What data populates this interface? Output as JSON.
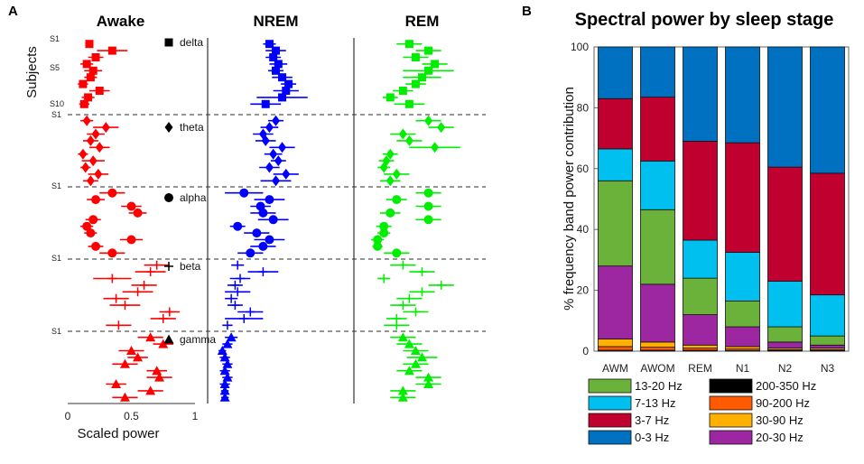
{
  "chart_data": [
    {
      "panel": "A",
      "type": "scatter",
      "xlabel": "Scaled power",
      "ylabel": "Subjects",
      "xlim": [
        0,
        1
      ],
      "xticks": [
        "0",
        "0.5",
        "1"
      ],
      "subject_labels": [
        "S1",
        "S5",
        "S10"
      ],
      "band_marker_labels": [
        "S1",
        "S1",
        "S1",
        "S1"
      ],
      "bands": [
        {
          "name": "delta",
          "marker": "square"
        },
        {
          "name": "theta",
          "marker": "diamond"
        },
        {
          "name": "alpha",
          "marker": "circle"
        },
        {
          "name": "beta",
          "marker": "plus"
        },
        {
          "name": "gamma",
          "marker": "triangle"
        }
      ],
      "stages": [
        {
          "name": "Awake",
          "color": "#ff0000",
          "series": {
            "delta": [
              [
                0.17,
                0.03
              ],
              [
                0.35,
                0.12
              ],
              [
                0.22,
                0.06
              ],
              [
                0.15,
                0.05
              ],
              [
                0.2,
                0.07
              ],
              [
                0.18,
                0.05
              ],
              [
                0.12,
                0.04
              ],
              [
                0.25,
                0.08
              ],
              [
                0.16,
                0.05
              ],
              [
                0.13,
                0.04
              ]
            ],
            "theta": [
              [
                0.15,
                0.05
              ],
              [
                0.3,
                0.1
              ],
              [
                0.22,
                0.07
              ],
              [
                0.18,
                0.06
              ],
              [
                0.25,
                0.08
              ],
              [
                0.12,
                0.04
              ],
              [
                0.2,
                0.09
              ],
              [
                0.14,
                0.04
              ],
              [
                0.24,
                0.08
              ],
              [
                0.18,
                0.06
              ]
            ],
            "alpha": [
              [
                0.35,
                0.1
              ],
              [
                0.22,
                0.07
              ],
              [
                0.5,
                0.08
              ],
              [
                0.55,
                0.07
              ],
              [
                0.2,
                0.06
              ],
              [
                0.15,
                0.05
              ],
              [
                0.18,
                0.05
              ],
              [
                0.5,
                0.09
              ],
              [
                0.22,
                0.06
              ],
              [
                0.35,
                0.1
              ]
            ],
            "beta": [
              [
                0.7,
                0.1
              ],
              [
                0.65,
                0.12
              ],
              [
                0.35,
                0.15
              ],
              [
                0.6,
                0.1
              ],
              [
                0.55,
                0.12
              ],
              [
                0.38,
                0.1
              ],
              [
                0.45,
                0.12
              ],
              [
                0.8,
                0.08
              ],
              [
                0.75,
                0.1
              ],
              [
                0.4,
                0.1
              ]
            ],
            "gamma": [
              [
                0.65,
                0.1
              ],
              [
                0.75,
                0.08
              ],
              [
                0.5,
                0.1
              ],
              [
                0.55,
                0.08
              ],
              [
                0.45,
                0.1
              ],
              [
                0.7,
                0.08
              ],
              [
                0.72,
                0.1
              ],
              [
                0.38,
                0.08
              ],
              [
                0.65,
                0.1
              ],
              [
                0.45,
                0.1
              ]
            ]
          }
        },
        {
          "name": "NREM",
          "color": "#0000ff",
          "series": {
            "delta": [
              [
                0.45,
                0.05
              ],
              [
                0.5,
                0.08
              ],
              [
                0.48,
                0.06
              ],
              [
                0.52,
                0.07
              ],
              [
                0.5,
                0.06
              ],
              [
                0.55,
                0.08
              ],
              [
                0.6,
                0.06
              ],
              [
                0.58,
                0.1
              ],
              [
                0.55,
                0.2
              ],
              [
                0.42,
                0.12
              ]
            ],
            "theta": [
              [
                0.5,
                0.06
              ],
              [
                0.45,
                0.07
              ],
              [
                0.4,
                0.08
              ],
              [
                0.42,
                0.08
              ],
              [
                0.55,
                0.1
              ],
              [
                0.48,
                0.07
              ],
              [
                0.52,
                0.06
              ],
              [
                0.45,
                0.08
              ],
              [
                0.58,
                0.1
              ],
              [
                0.5,
                0.12
              ]
            ],
            "alpha": [
              [
                0.25,
                0.15
              ],
              [
                0.45,
                0.12
              ],
              [
                0.38,
                0.08
              ],
              [
                0.4,
                0.1
              ],
              [
                0.48,
                0.12
              ],
              [
                0.2,
                0.06
              ],
              [
                0.35,
                0.1
              ],
              [
                0.45,
                0.12
              ],
              [
                0.4,
                0.1
              ],
              [
                0.3,
                0.1
              ]
            ],
            "beta": [
              [
                0.2,
                0.05
              ],
              [
                0.4,
                0.12
              ],
              [
                0.22,
                0.08
              ],
              [
                0.18,
                0.06
              ],
              [
                0.2,
                0.1
              ],
              [
                0.15,
                0.05
              ],
              [
                0.18,
                0.06
              ],
              [
                0.3,
                0.1
              ],
              [
                0.25,
                0.15
              ],
              [
                0.12,
                0.04
              ]
            ],
            "gamma": [
              [
                0.15,
                0.05
              ],
              [
                0.12,
                0.04
              ],
              [
                0.08,
                0.03
              ],
              [
                0.1,
                0.04
              ],
              [
                0.12,
                0.04
              ],
              [
                0.1,
                0.04
              ],
              [
                0.12,
                0.04
              ],
              [
                0.1,
                0.04
              ],
              [
                0.1,
                0.03
              ],
              [
                0.1,
                0.03
              ]
            ]
          }
        },
        {
          "name": "REM",
          "color": "#00ee00",
          "series": {
            "delta": [
              [
                0.4,
                0.1
              ],
              [
                0.55,
                0.1
              ],
              [
                0.45,
                0.1
              ],
              [
                0.6,
                0.1
              ],
              [
                0.55,
                0.2
              ],
              [
                0.5,
                0.15
              ],
              [
                0.45,
                0.08
              ],
              [
                0.35,
                0.08
              ],
              [
                0.25,
                0.06
              ],
              [
                0.4,
                0.12
              ]
            ],
            "theta": [
              [
                0.55,
                0.1
              ],
              [
                0.65,
                0.1
              ],
              [
                0.35,
                0.1
              ],
              [
                0.4,
                0.1
              ],
              [
                0.6,
                0.2
              ],
              [
                0.25,
                0.06
              ],
              [
                0.22,
                0.06
              ],
              [
                0.2,
                0.05
              ],
              [
                0.3,
                0.1
              ],
              [
                0.25,
                0.08
              ]
            ],
            "alpha": [
              [
                0.55,
                0.1
              ],
              [
                0.3,
                0.08
              ],
              [
                0.55,
                0.1
              ],
              [
                0.25,
                0.08
              ],
              [
                0.55,
                0.1
              ],
              [
                0.2,
                0.06
              ],
              [
                0.2,
                0.05
              ],
              [
                0.15,
                0.05
              ],
              [
                0.15,
                0.04
              ],
              [
                0.3,
                0.1
              ]
            ],
            "beta": [
              [
                0.35,
                0.1
              ],
              [
                0.5,
                0.1
              ],
              [
                0.2,
                0.05
              ],
              [
                0.65,
                0.1
              ],
              [
                0.5,
                0.1
              ],
              [
                0.4,
                0.1
              ],
              [
                0.35,
                0.1
              ],
              [
                0.45,
                0.1
              ],
              [
                0.3,
                0.08
              ],
              [
                0.3,
                0.1
              ]
            ],
            "gamma": [
              [
                0.35,
                0.1
              ],
              [
                0.4,
                0.1
              ],
              [
                0.45,
                0.1
              ],
              [
                0.5,
                0.12
              ],
              [
                0.45,
                0.1
              ],
              [
                0.4,
                0.1
              ],
              [
                0.55,
                0.1
              ],
              [
                0.55,
                0.1
              ],
              [
                0.35,
                0.1
              ],
              [
                0.35,
                0.1
              ]
            ]
          }
        }
      ]
    },
    {
      "panel": "B",
      "type": "bar",
      "stacked": true,
      "title": "Spectral power by sleep stage",
      "ylabel": "% frequency band power contribution",
      "ylim": [
        0,
        100
      ],
      "yticks": [
        0,
        20,
        40,
        60,
        80,
        100
      ],
      "categories": [
        "AWM",
        "AWOM",
        "REM",
        "N1",
        "N2",
        "N3"
      ],
      "series": [
        {
          "name": "200-350 Hz",
          "color": "#000000",
          "values": [
            0.3,
            0.3,
            0.3,
            0.2,
            0.2,
            0.2
          ]
        },
        {
          "name": "90-200 Hz",
          "color": "#ff5a00",
          "values": [
            1.2,
            1,
            0.7,
            0.5,
            0.3,
            0.3
          ]
        },
        {
          "name": "30-90 Hz",
          "color": "#ffb000",
          "values": [
            2.5,
            1.7,
            1.0,
            0.8,
            0.5,
            0.5
          ]
        },
        {
          "name": "20-30 Hz",
          "color": "#9c27a0",
          "values": [
            24,
            19,
            10,
            6.5,
            2,
            1
          ]
        },
        {
          "name": "13-20 Hz",
          "color": "#6ab23a",
          "values": [
            28,
            24.5,
            12,
            8.5,
            5,
            3
          ]
        },
        {
          "name": "7-13 Hz",
          "color": "#00c0f0",
          "values": [
            10.5,
            16,
            12.5,
            16,
            15,
            13.5
          ]
        },
        {
          "name": "3-7 Hz",
          "color": "#c0002f",
          "values": [
            16.5,
            21,
            32.5,
            36,
            37.5,
            40
          ]
        },
        {
          "name": "0-3 Hz",
          "color": "#0070c0",
          "values": [
            17,
            16.5,
            31,
            31.5,
            39.5,
            41.5
          ]
        }
      ],
      "legend": {
        "left": [
          "13-20 Hz",
          "7-13 Hz",
          "3-7 Hz",
          "0-3 Hz"
        ],
        "right": [
          "200-350 Hz",
          "90-200 Hz",
          "30-90 Hz",
          "20-30 Hz"
        ]
      }
    }
  ]
}
